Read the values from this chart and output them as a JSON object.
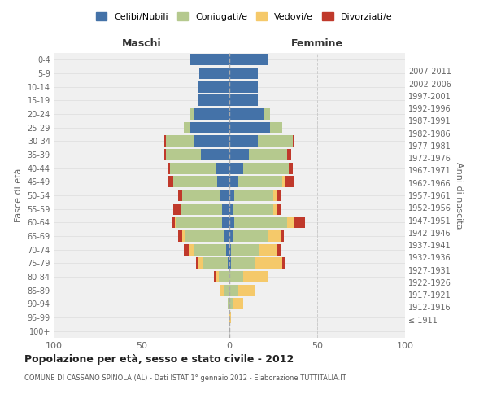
{
  "age_groups": [
    "100+",
    "95-99",
    "90-94",
    "85-89",
    "80-84",
    "75-79",
    "70-74",
    "65-69",
    "60-64",
    "55-59",
    "50-54",
    "45-49",
    "40-44",
    "35-39",
    "30-34",
    "25-29",
    "20-24",
    "15-19",
    "10-14",
    "5-9",
    "0-4"
  ],
  "birth_years": [
    "≤ 1911",
    "1912-1916",
    "1917-1921",
    "1922-1926",
    "1927-1931",
    "1932-1936",
    "1937-1941",
    "1942-1946",
    "1947-1951",
    "1952-1956",
    "1957-1961",
    "1962-1966",
    "1967-1971",
    "1972-1976",
    "1977-1981",
    "1982-1986",
    "1987-1991",
    "1992-1996",
    "1997-2001",
    "2002-2006",
    "2007-2011"
  ],
  "males": {
    "celibi": [
      0,
      0,
      0,
      0,
      0,
      1,
      2,
      3,
      4,
      4,
      5,
      7,
      8,
      16,
      20,
      22,
      20,
      18,
      18,
      17,
      22
    ],
    "coniugati": [
      0,
      0,
      1,
      3,
      6,
      14,
      18,
      22,
      26,
      24,
      22,
      25,
      26,
      20,
      16,
      4,
      2,
      0,
      0,
      0,
      0
    ],
    "vedovi": [
      0,
      0,
      0,
      2,
      2,
      3,
      3,
      2,
      1,
      0,
      0,
      0,
      0,
      0,
      0,
      0,
      0,
      0,
      0,
      0,
      0
    ],
    "divorziati": [
      0,
      0,
      0,
      0,
      1,
      1,
      3,
      2,
      2,
      4,
      2,
      3,
      1,
      1,
      1,
      0,
      0,
      0,
      0,
      0,
      0
    ]
  },
  "females": {
    "nubili": [
      0,
      0,
      0,
      0,
      0,
      1,
      1,
      2,
      3,
      2,
      3,
      5,
      8,
      11,
      16,
      23,
      20,
      16,
      16,
      16,
      22
    ],
    "coniugate": [
      0,
      0,
      2,
      5,
      8,
      14,
      16,
      20,
      30,
      23,
      22,
      25,
      26,
      22,
      20,
      7,
      3,
      0,
      0,
      0,
      0
    ],
    "vedove": [
      0,
      1,
      6,
      10,
      14,
      15,
      10,
      7,
      4,
      2,
      2,
      2,
      0,
      0,
      0,
      0,
      0,
      0,
      0,
      0,
      0
    ],
    "divorziate": [
      0,
      0,
      0,
      0,
      0,
      2,
      2,
      2,
      6,
      2,
      2,
      5,
      2,
      2,
      1,
      0,
      0,
      0,
      0,
      0,
      0
    ]
  },
  "colors": {
    "celibi": "#4472a8",
    "coniugati": "#b5c98e",
    "vedovi": "#f5c96a",
    "divorziati": "#c0392b"
  },
  "legend_labels": [
    "Celibi/Nubili",
    "Coniugati/e",
    "Vedovi/e",
    "Divorziati/e"
  ],
  "title": "Popolazione per età, sesso e stato civile - 2012",
  "subtitle": "COMUNE DI CASSANO SPINOLA (AL) - Dati ISTAT 1° gennaio 2012 - Elaborazione TUTTITALIA.IT",
  "xlabel_left": "Maschi",
  "xlabel_right": "Femmine",
  "ylabel_left": "Fasce di età",
  "ylabel_right": "Anni di nascita",
  "xlim": 100,
  "bg_color": "#ffffff",
  "plot_bg": "#f0f0f0",
  "grid_color": "#cccccc"
}
